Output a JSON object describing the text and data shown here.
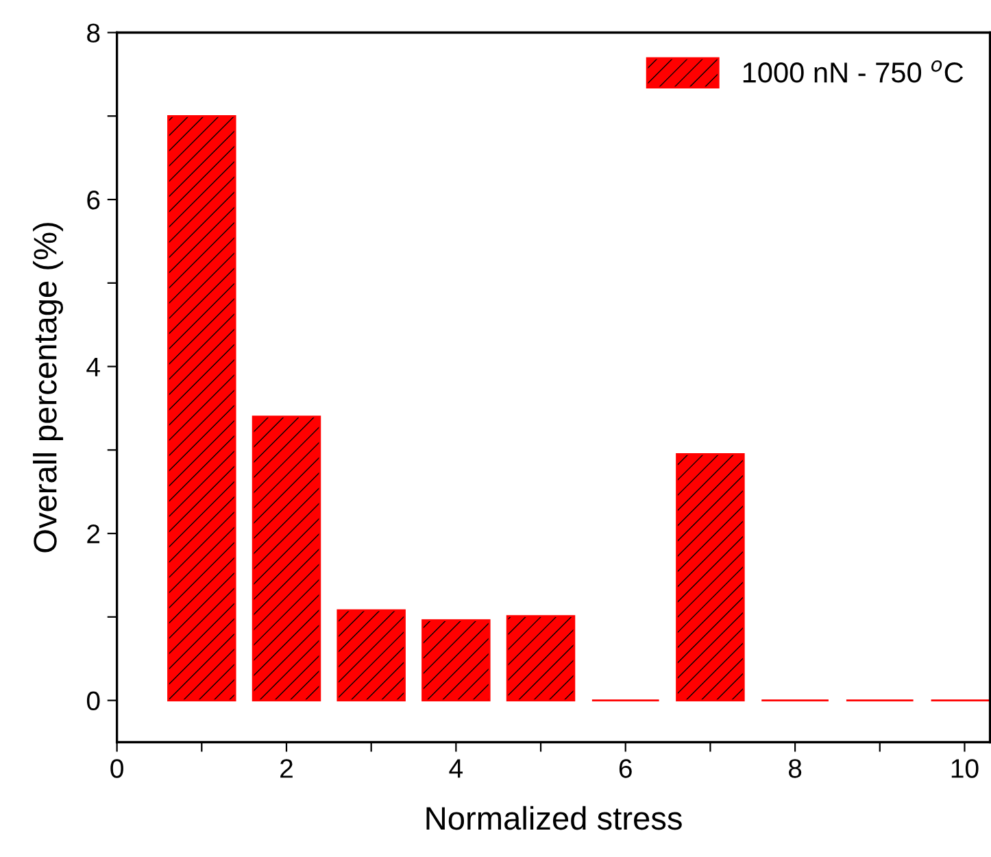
{
  "chart_data": {
    "type": "bar",
    "xlabel": "Normalized stress",
    "ylabel": "Overall percentage (%)",
    "x": [
      1,
      2,
      3,
      4,
      5,
      6,
      7,
      8,
      9,
      10
    ],
    "series": [
      {
        "name": "1000 nN - 750 $^{o}$C",
        "color": "#ff0000",
        "values": [
          7.0,
          3.4,
          1.08,
          0.96,
          1.01,
          0,
          2.95,
          0,
          0,
          0
        ]
      }
    ],
    "xlim": [
      0,
      10.3
    ],
    "ylim": [
      -0.5,
      8
    ],
    "xticks": [
      0,
      {
        "value": 1,
        "label": null
      },
      2,
      {
        "value": 3,
        "label": null
      },
      4,
      {
        "value": 5,
        "label": null
      },
      6,
      {
        "value": 7,
        "label": null
      },
      8,
      {
        "value": 9,
        "label": null
      },
      10
    ],
    "yticks": [
      0,
      {
        "value": 1,
        "label": null
      },
      2,
      {
        "value": 3,
        "label": null
      },
      4,
      {
        "value": 5,
        "label": null
      },
      6,
      {
        "value": 7,
        "label": null
      },
      8
    ],
    "legend": "top right",
    "grid": false
  }
}
